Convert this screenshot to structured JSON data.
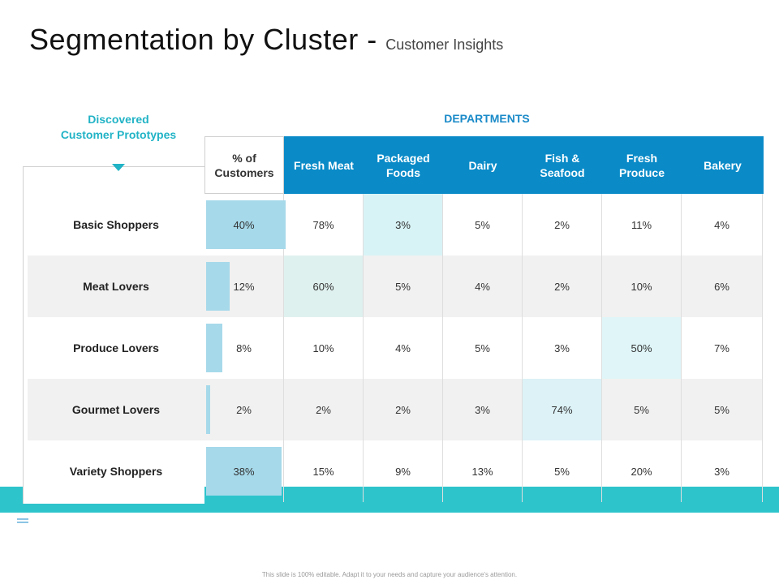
{
  "title": {
    "main": "Segmentation by Cluster",
    "separator": " - ",
    "sub": "Customer Insights"
  },
  "prototypes_header": {
    "line1": "Discovered",
    "line2": "Customer Prototypes"
  },
  "departments_header": "DEPARTMENTS",
  "columns": {
    "share_line1": "% of",
    "share_line2": "Customers",
    "fresh_meat": "Fresh Meat",
    "packaged_line1": "Packaged",
    "packaged_line2": "Foods",
    "dairy": "Dairy",
    "fish_line1": "Fish &",
    "fish_line2": "Seafood",
    "produce_line1": "Fresh",
    "produce_line2": "Produce",
    "bakery": "Bakery"
  },
  "rows": [
    {
      "name": "Basic Shoppers",
      "share": "40%",
      "share_value": 40,
      "values": [
        "78%",
        "3%",
        "5%",
        "2%",
        "11%",
        "4%"
      ]
    },
    {
      "name": "Meat Lovers",
      "share": "12%",
      "share_value": 12,
      "values": [
        "60%",
        "5%",
        "4%",
        "2%",
        "10%",
        "6%"
      ]
    },
    {
      "name": "Produce Lovers",
      "share": "8%",
      "share_value": 8,
      "values": [
        "10%",
        "4%",
        "5%",
        "3%",
        "50%",
        "7%"
      ]
    },
    {
      "name": "Gourmet Lovers",
      "share": "2%",
      "share_value": 2,
      "values": [
        "2%",
        "2%",
        "3%",
        "74%",
        "5%",
        "5%"
      ]
    },
    {
      "name": "Variety Shoppers",
      "share": "38%",
      "share_value": 38,
      "values": [
        "15%",
        "9%",
        "13%",
        "5%",
        "20%",
        "3%"
      ]
    }
  ],
  "highlights": [
    {
      "row": 0,
      "col": 1,
      "color": "#d8f3f6"
    },
    {
      "row": 1,
      "col": 0,
      "color": "#dff1ee"
    },
    {
      "row": 2,
      "col": 4,
      "color": "#dff5f8"
    },
    {
      "row": 3,
      "col": 3,
      "color": "#dcf2f7"
    }
  ],
  "colors": {
    "accent": "#21b3c6",
    "header": "#0a8bc8",
    "band": "#2ec4cc",
    "bar": "#a6d9ea"
  },
  "footnote": "This slide is 100% editable. Adapt it to your needs and capture your audience's attention."
}
